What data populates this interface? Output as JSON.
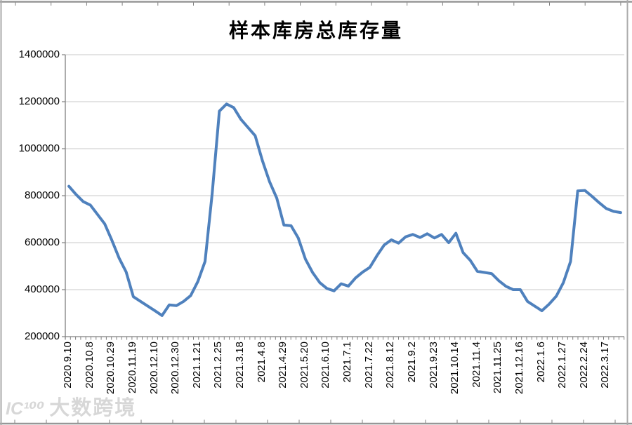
{
  "chart_data": {
    "type": "line",
    "title": "样本库房总库存量",
    "xlabel": "",
    "ylabel": "",
    "ylim": [
      200000,
      1400000
    ],
    "ytick_step": 200000,
    "y_tick_labels": [
      "1400000",
      "1200000",
      "1000000",
      "800000",
      "600000",
      "400000",
      "200000"
    ],
    "x_tick_labels": [
      "2020.9.10",
      "2020.10.8",
      "2020.10.29",
      "2020.11.19",
      "2020.12.10",
      "2020.12.30",
      "2021.1.21",
      "2021.2.25",
      "2021.3.18",
      "2021.4.8",
      "2021.4.29",
      "2021.5.20",
      "2021.6.10",
      "2021.7.1",
      "2021.7.22",
      "2021.8.12",
      "2021.9.2",
      "2021.9.23",
      "2021.10.14",
      "2021.11.4",
      "2021.11.25",
      "2021.12.16",
      "2022.1.6",
      "2022.1.27",
      "2022.2.24",
      "2022.3.17"
    ],
    "label_every": 3,
    "grid": "horizontal",
    "legend_position": "none",
    "values": [
      840000,
      805000,
      775000,
      760000,
      720000,
      680000,
      610000,
      535000,
      475000,
      370000,
      350000,
      330000,
      310000,
      290000,
      335000,
      332000,
      350000,
      375000,
      435000,
      520000,
      810000,
      1160000,
      1190000,
      1175000,
      1125000,
      1090000,
      1055000,
      950000,
      860000,
      790000,
      675000,
      672000,
      620000,
      530000,
      473000,
      430000,
      405000,
      395000,
      425000,
      415000,
      450000,
      475000,
      495000,
      545000,
      590000,
      612000,
      598000,
      625000,
      635000,
      622000,
      638000,
      620000,
      635000,
      600000,
      640000,
      558000,
      525000,
      478000,
      473000,
      468000,
      438000,
      414000,
      400000,
      400000,
      350000,
      330000,
      310000,
      338000,
      372000,
      430000,
      520000,
      820000,
      822000,
      797000,
      770000,
      745000,
      733000,
      728000
    ],
    "line_color": "#4F81BD",
    "gridline_color": "#C9C9C9",
    "axis_color": "#808080",
    "frame_color": "#979797"
  },
  "watermark": {
    "logo": "IC¹⁰⁰",
    "text": "大数跨境"
  }
}
